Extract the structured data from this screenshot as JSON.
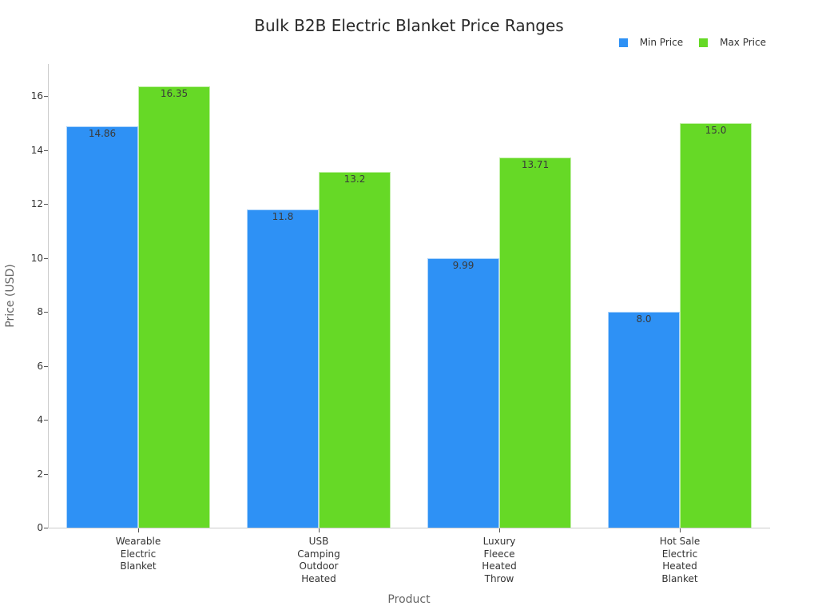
{
  "chart_data": {
    "type": "bar",
    "title": "Bulk B2B Electric Blanket Price Ranges",
    "xlabel": "Product",
    "ylabel": "Price (USD)",
    "categories": [
      "Wearable Electric Blanket",
      "USB Camping Outdoor Heated",
      "Luxury Fleece Heated Throw",
      "Hot Sale Electric Heated Blanket"
    ],
    "category_labels_wrapped": [
      "Wearable\nElectric\nBlanket",
      "USB\nCamping\nOutdoor\nHeated",
      "Luxury\nFleece\nHeated\nThrow",
      "Hot Sale\nElectric\nHeated\nBlanket"
    ],
    "series": [
      {
        "name": "Min Price",
        "color": "#2e91f5",
        "values": [
          14.86,
          11.8,
          9.99,
          8.0
        ],
        "labels": [
          "14.86",
          "11.8",
          "9.99",
          "8.0"
        ]
      },
      {
        "name": "Max Price",
        "color": "#66d926",
        "values": [
          16.35,
          13.2,
          13.71,
          15.0
        ],
        "labels": [
          "16.35",
          "13.2",
          "13.71",
          "15.0"
        ]
      }
    ],
    "ylim": [
      0,
      17.2
    ],
    "yticks": [
      0,
      2,
      4,
      6,
      8,
      10,
      12,
      14,
      16
    ],
    "grid": false,
    "legend_position": "top-right"
  }
}
